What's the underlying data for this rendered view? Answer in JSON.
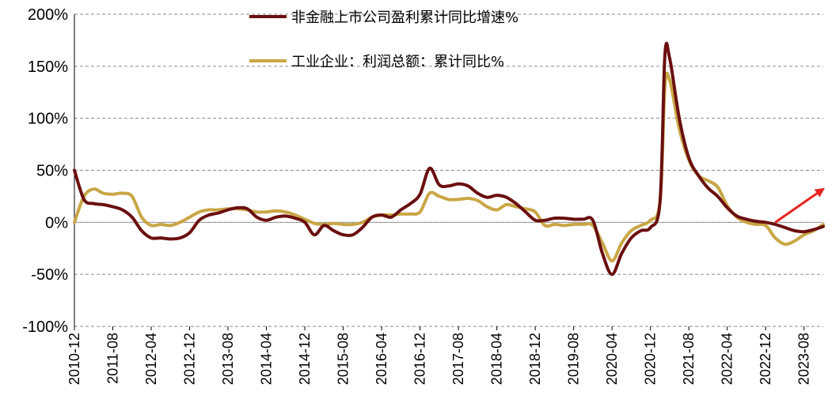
{
  "chart_data": {
    "type": "line",
    "ylim": [
      -100,
      200
    ],
    "y_ticks": [
      "200%",
      "150%",
      "100%",
      "50%",
      "0%",
      "-50%",
      "-100%"
    ],
    "y_tick_values": [
      200,
      150,
      100,
      50,
      0,
      -50,
      -100
    ],
    "x_ticks": [
      "2010-12",
      "2011-08",
      "2012-04",
      "2012-12",
      "2013-08",
      "2014-04",
      "2014-12",
      "2015-08",
      "2016-04",
      "2016-12",
      "2017-08",
      "2018-04",
      "2018-12",
      "2019-08",
      "2020-04",
      "2020-12",
      "2021-08",
      "2022-04",
      "2022-12",
      "2023-08"
    ],
    "grid": "horizontal dashed",
    "legend_position": "top-center",
    "series": [
      {
        "name": "非金融上市公司盈利累计同比增速%",
        "color": "#6b0f0f",
        "points": [
          [
            "2010-12",
            50
          ],
          [
            "2011-02",
            22
          ],
          [
            "2011-04",
            18
          ],
          [
            "2011-06",
            17
          ],
          [
            "2011-08",
            15
          ],
          [
            "2011-10",
            12
          ],
          [
            "2011-12",
            5
          ],
          [
            "2012-02",
            -8
          ],
          [
            "2012-04",
            -15
          ],
          [
            "2012-06",
            -15
          ],
          [
            "2012-08",
            -16
          ],
          [
            "2012-10",
            -15
          ],
          [
            "2012-12",
            -10
          ],
          [
            "2013-02",
            2
          ],
          [
            "2013-04",
            7
          ],
          [
            "2013-06",
            9
          ],
          [
            "2013-08",
            12
          ],
          [
            "2013-10",
            14
          ],
          [
            "2013-12",
            13
          ],
          [
            "2014-02",
            5
          ],
          [
            "2014-04",
            2
          ],
          [
            "2014-06",
            5
          ],
          [
            "2014-08",
            6
          ],
          [
            "2014-10",
            4
          ],
          [
            "2014-12",
            0
          ],
          [
            "2015-02",
            -12
          ],
          [
            "2015-04",
            -3
          ],
          [
            "2015-06",
            -8
          ],
          [
            "2015-08",
            -12
          ],
          [
            "2015-10",
            -12
          ],
          [
            "2015-12",
            -5
          ],
          [
            "2016-02",
            5
          ],
          [
            "2016-04",
            7
          ],
          [
            "2016-06",
            5
          ],
          [
            "2016-08",
            12
          ],
          [
            "2016-10",
            18
          ],
          [
            "2016-12",
            27
          ],
          [
            "2017-02",
            52
          ],
          [
            "2017-04",
            36
          ],
          [
            "2017-06",
            35
          ],
          [
            "2017-08",
            37
          ],
          [
            "2017-10",
            35
          ],
          [
            "2017-12",
            28
          ],
          [
            "2018-02",
            24
          ],
          [
            "2018-04",
            26
          ],
          [
            "2018-06",
            24
          ],
          [
            "2018-08",
            18
          ],
          [
            "2018-10",
            10
          ],
          [
            "2018-12",
            2
          ],
          [
            "2019-02",
            2
          ],
          [
            "2019-04",
            4
          ],
          [
            "2019-06",
            4
          ],
          [
            "2019-08",
            3
          ],
          [
            "2019-10",
            3
          ],
          [
            "2019-12",
            2
          ],
          [
            "2020-02",
            -30
          ],
          [
            "2020-04",
            -50
          ],
          [
            "2020-06",
            -30
          ],
          [
            "2020-08",
            -15
          ],
          [
            "2020-10",
            -8
          ],
          [
            "2020-12",
            -5
          ],
          [
            "2021-02",
            20
          ],
          [
            "2021-03",
            160
          ],
          [
            "2021-04",
            158
          ],
          [
            "2021-06",
            100
          ],
          [
            "2021-08",
            62
          ],
          [
            "2021-10",
            45
          ],
          [
            "2021-12",
            33
          ],
          [
            "2022-02",
            25
          ],
          [
            "2022-04",
            14
          ],
          [
            "2022-06",
            6
          ],
          [
            "2022-08",
            3
          ],
          [
            "2022-10",
            1
          ],
          [
            "2022-12",
            0
          ],
          [
            "2023-02",
            -2
          ],
          [
            "2023-04",
            -5
          ],
          [
            "2023-06",
            -8
          ],
          [
            "2023-08",
            -9
          ],
          [
            "2023-10",
            -7
          ],
          [
            "2023-12",
            -4
          ]
        ]
      },
      {
        "name": "工业企业：利润总额：累计同比%",
        "color": "#c9a645",
        "points": [
          [
            "2010-12",
            0
          ],
          [
            "2011-02",
            25
          ],
          [
            "2011-04",
            32
          ],
          [
            "2011-06",
            28
          ],
          [
            "2011-08",
            27
          ],
          [
            "2011-10",
            28
          ],
          [
            "2011-12",
            25
          ],
          [
            "2012-02",
            5
          ],
          [
            "2012-04",
            -3
          ],
          [
            "2012-06",
            -2
          ],
          [
            "2012-08",
            -3
          ],
          [
            "2012-10",
            0
          ],
          [
            "2012-12",
            5
          ],
          [
            "2013-02",
            10
          ],
          [
            "2013-04",
            12
          ],
          [
            "2013-06",
            12
          ],
          [
            "2013-08",
            13
          ],
          [
            "2013-10",
            13
          ],
          [
            "2013-12",
            12
          ],
          [
            "2014-02",
            10
          ],
          [
            "2014-04",
            10
          ],
          [
            "2014-06",
            11
          ],
          [
            "2014-08",
            10
          ],
          [
            "2014-10",
            7
          ],
          [
            "2014-12",
            3
          ],
          [
            "2015-02",
            -1
          ],
          [
            "2015-04",
            -2
          ],
          [
            "2015-06",
            -1
          ],
          [
            "2015-08",
            -2
          ],
          [
            "2015-10",
            -2
          ],
          [
            "2015-12",
            0
          ],
          [
            "2016-02",
            5
          ],
          [
            "2016-04",
            7
          ],
          [
            "2016-06",
            7
          ],
          [
            "2016-08",
            8
          ],
          [
            "2016-10",
            8
          ],
          [
            "2016-12",
            10
          ],
          [
            "2017-02",
            28
          ],
          [
            "2017-04",
            25
          ],
          [
            "2017-06",
            22
          ],
          [
            "2017-08",
            22
          ],
          [
            "2017-10",
            23
          ],
          [
            "2017-12",
            21
          ],
          [
            "2018-02",
            15
          ],
          [
            "2018-04",
            12
          ],
          [
            "2018-06",
            17
          ],
          [
            "2018-08",
            15
          ],
          [
            "2018-10",
            13
          ],
          [
            "2018-12",
            10
          ],
          [
            "2019-02",
            -3
          ],
          [
            "2019-04",
            -2
          ],
          [
            "2019-06",
            -3
          ],
          [
            "2019-08",
            -2
          ],
          [
            "2019-10",
            -2
          ],
          [
            "2019-12",
            -3
          ],
          [
            "2020-02",
            -20
          ],
          [
            "2020-04",
            -37
          ],
          [
            "2020-06",
            -20
          ],
          [
            "2020-08",
            -8
          ],
          [
            "2020-10",
            -3
          ],
          [
            "2020-12",
            2
          ],
          [
            "2021-02",
            20
          ],
          [
            "2021-03",
            130
          ],
          [
            "2021-04",
            137
          ],
          [
            "2021-06",
            90
          ],
          [
            "2021-08",
            60
          ],
          [
            "2021-10",
            45
          ],
          [
            "2021-12",
            40
          ],
          [
            "2022-02",
            34
          ],
          [
            "2022-04",
            16
          ],
          [
            "2022-06",
            5
          ],
          [
            "2022-08",
            0
          ],
          [
            "2022-10",
            -2
          ],
          [
            "2022-12",
            -3
          ],
          [
            "2023-02",
            -15
          ],
          [
            "2023-04",
            -21
          ],
          [
            "2023-06",
            -18
          ],
          [
            "2023-08",
            -12
          ],
          [
            "2023-10",
            -8
          ],
          [
            "2023-12",
            -2
          ]
        ]
      }
    ],
    "annotation": {
      "type": "arrow",
      "color": "#e8231f",
      "from": [
        "2023-02",
        0
      ],
      "to": [
        "2023-12",
        32
      ]
    }
  }
}
